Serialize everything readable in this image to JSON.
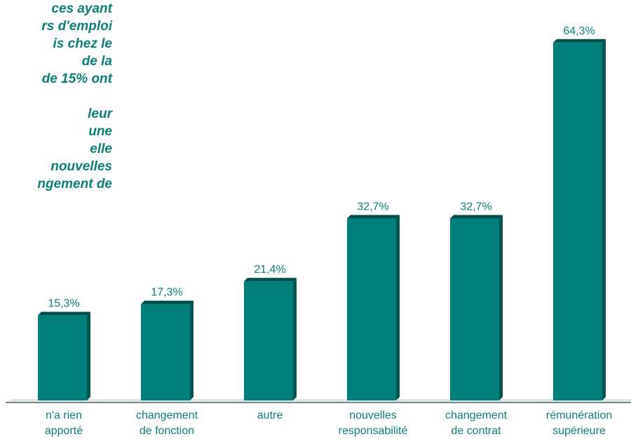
{
  "note": {
    "lines": [
      "ces ayant",
      "rs d'emploi",
      "is chez le",
      "de la",
      "de 15% ont",
      "",
      "leur",
      "une",
      "elle",
      "nouvelles",
      "ngement de"
    ]
  },
  "chart_data": {
    "type": "bar",
    "categories": [
      [
        "n'a rien",
        "apporté"
      ],
      [
        "changement",
        "de fonction"
      ],
      [
        "autre"
      ],
      [
        "nouvelles",
        "responsabilité"
      ],
      [
        "changement",
        "de contrat"
      ],
      [
        "rémunération",
        "supérieure"
      ]
    ],
    "values": [
      15.3,
      17.3,
      21.4,
      32.7,
      32.7,
      64.3
    ],
    "data_labels": [
      "15,3%",
      "17,3%",
      "21,4%",
      "32,7%",
      "32,7%",
      "64,3%"
    ],
    "ylim": [
      0,
      68
    ],
    "grid": false,
    "colors": {
      "bar_front": "#007f7a",
      "bar_side": "#005550",
      "bar_top": "#004f4a",
      "text": "#0d7f76",
      "axis": "#7a8a89"
    }
  }
}
